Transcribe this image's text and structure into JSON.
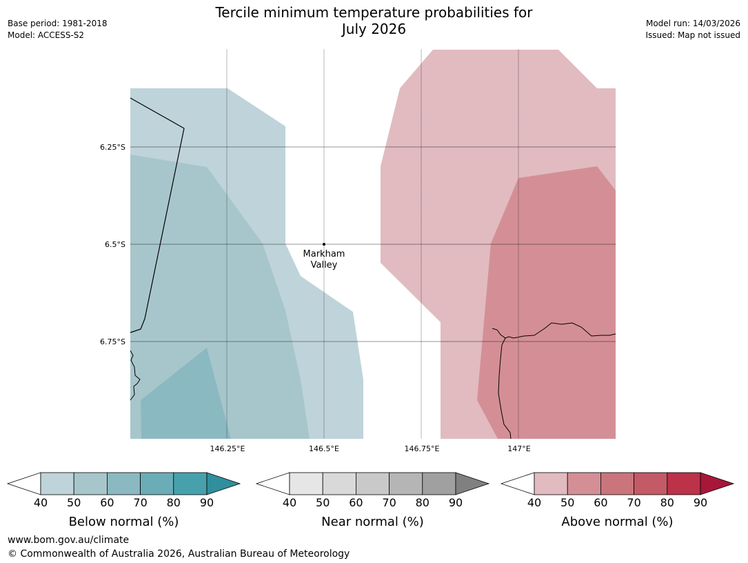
{
  "header": {
    "title_line1": "Tercile minimum temperature probabilities for",
    "title_line2": "July 2026",
    "base_period": "Base period: 1981-2018",
    "model": "Model: ACCESS-S2",
    "model_run": "Model run: 14/03/2026",
    "issued": "Issued: Map not issued"
  },
  "map": {
    "place_label_line1": "Markham",
    "place_label_line2": "Valley",
    "lat_labels": [
      "6.25°S",
      "6.5°S",
      "6.75°S"
    ],
    "lon_labels": [
      "146.25°E",
      "146.5°E",
      "146.75°E",
      "147°E"
    ],
    "colors": {
      "below_40": "#bfd3da",
      "below_50": "#a7c6cb",
      "below_60": "#8bb9c1",
      "above_40": "#e1bbc0",
      "above_50": "#d48f96"
    }
  },
  "legends": [
    {
      "name": "below",
      "label": "Below normal (%)",
      "ticks": [
        "40",
        "50",
        "60",
        "70",
        "80",
        "90"
      ],
      "colors": [
        "#bfd3da",
        "#a7c6cb",
        "#8bb9c1",
        "#6aadb7",
        "#47a1ad",
        "#2f8f9c"
      ]
    },
    {
      "name": "near",
      "label": "Near normal (%)",
      "ticks": [
        "40",
        "50",
        "60",
        "70",
        "80",
        "90"
      ],
      "colors": [
        "#e6e6e6",
        "#d9d9d9",
        "#c9c9c9",
        "#b5b5b5",
        "#a0a0a0",
        "#808080"
      ]
    },
    {
      "name": "above",
      "label": "Above normal (%)",
      "ticks": [
        "40",
        "50",
        "60",
        "70",
        "80",
        "90"
      ],
      "colors": [
        "#e1bbc0",
        "#d48f96",
        "#ca747b",
        "#c35a66",
        "#bb3249",
        "#a8163a"
      ]
    }
  ],
  "footer": {
    "url": "www.bom.gov.au/climate",
    "copyright": "© Commonwealth of Australia 2026, Australian Bureau of Meteorology"
  }
}
